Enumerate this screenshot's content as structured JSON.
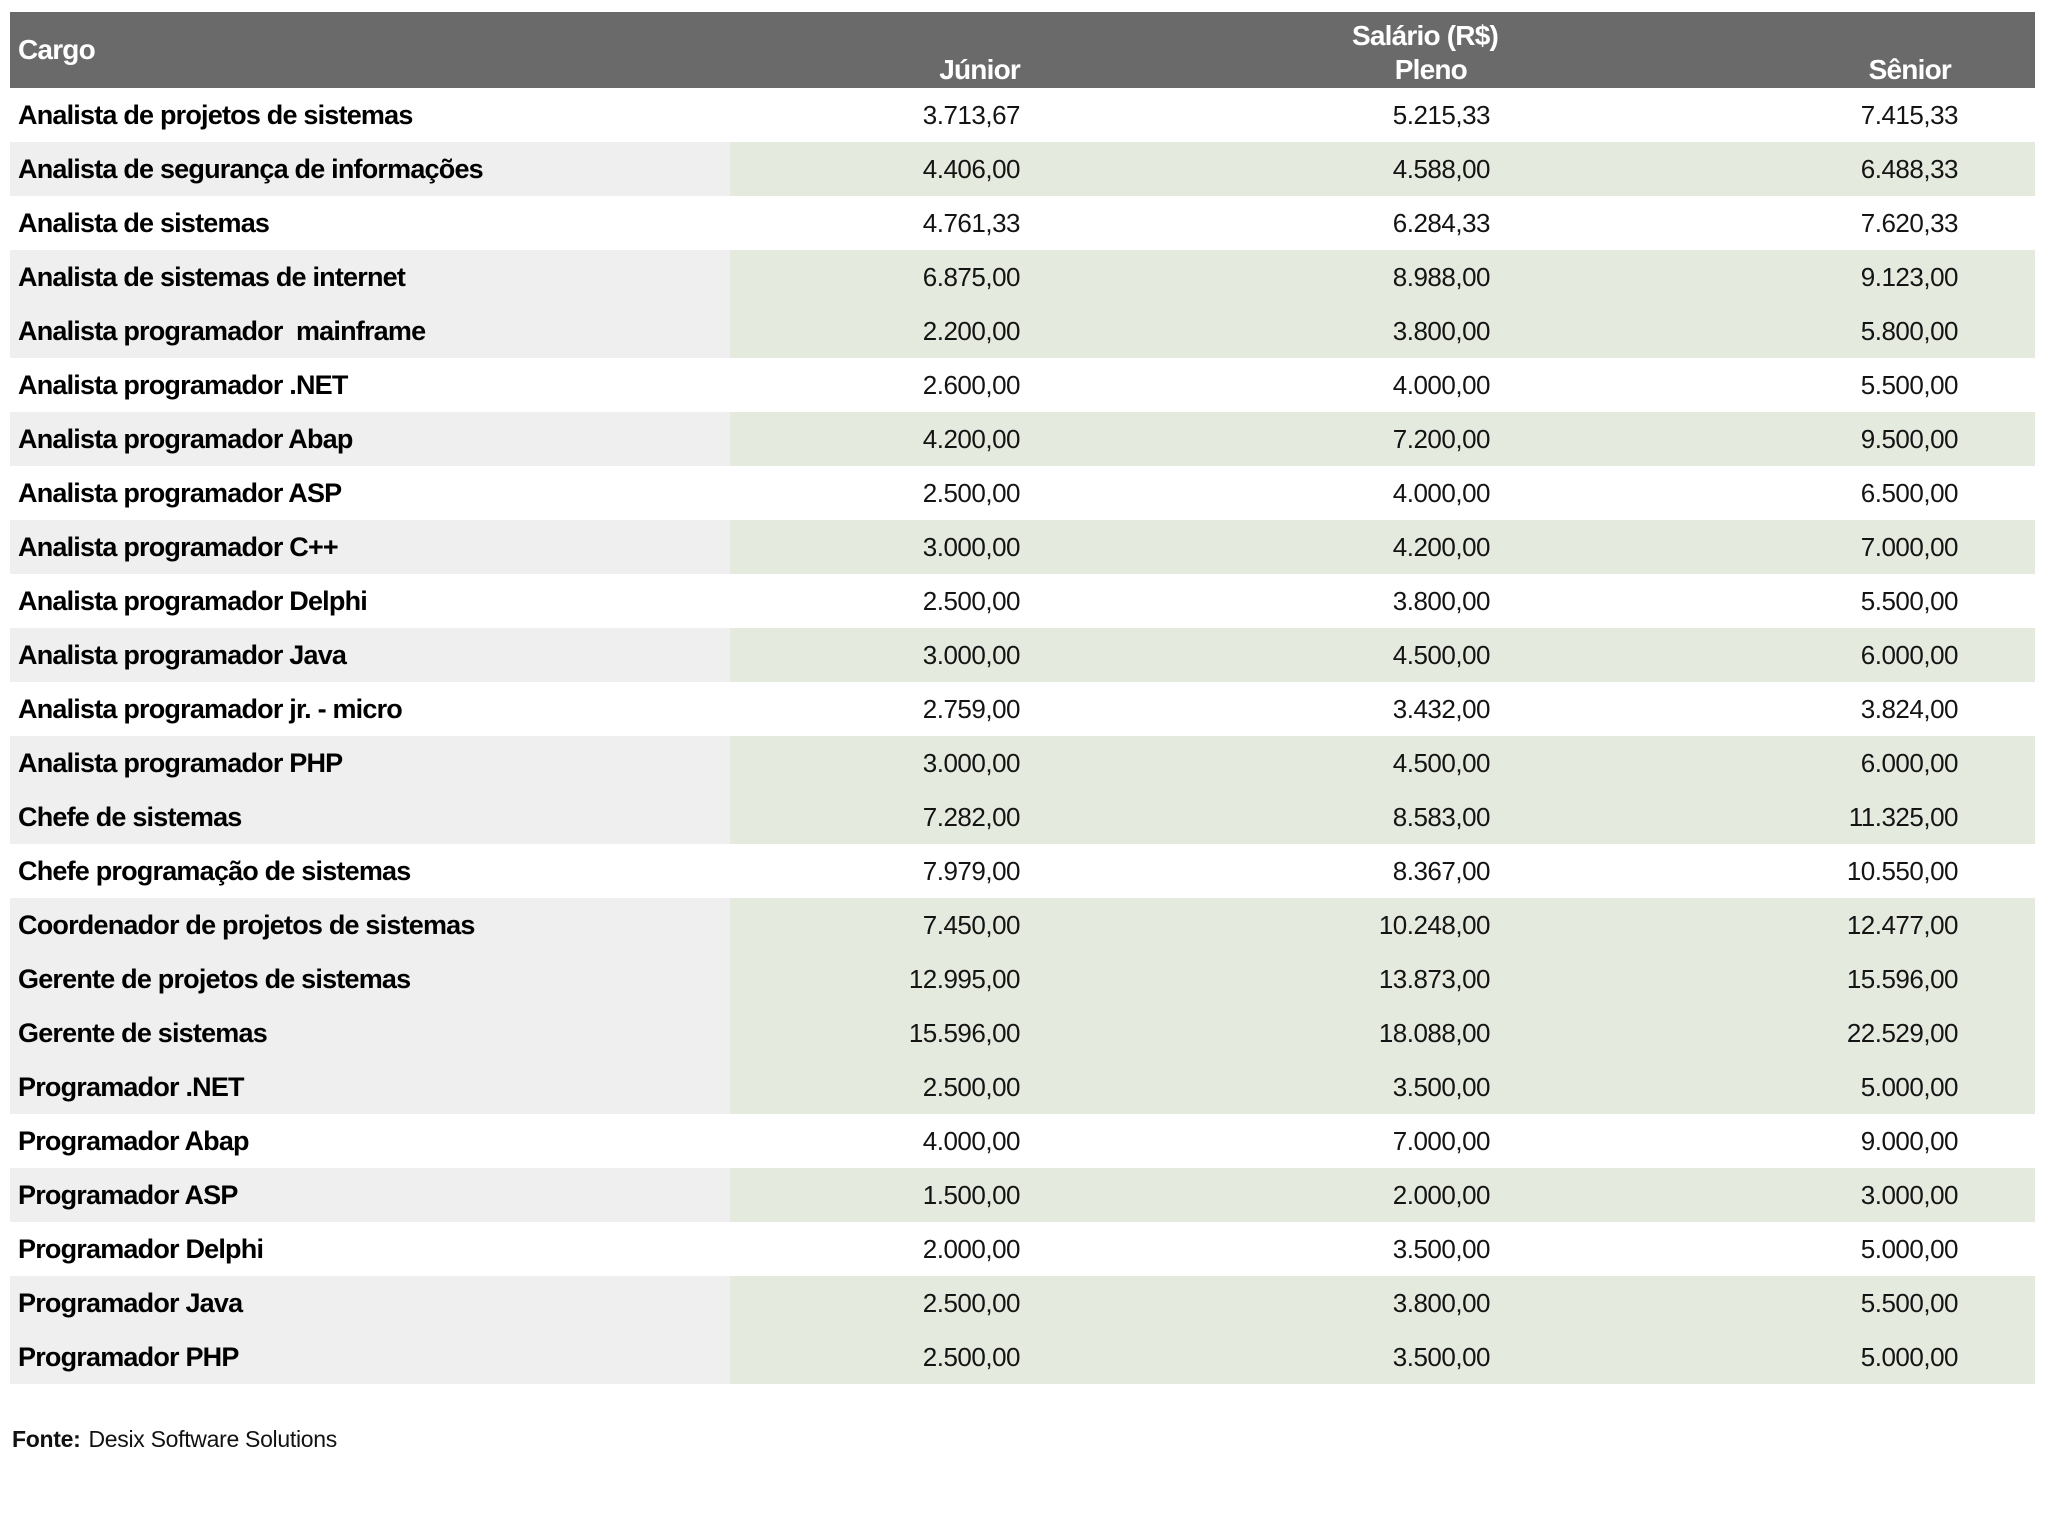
{
  "chart_data": {
    "type": "table",
    "title": "Salário (R$)",
    "header": {
      "cargo_label": "Cargo",
      "group_label": "Salário (R$)",
      "level_labels": [
        "Júnior",
        "Pleno",
        "Sênior"
      ]
    },
    "rows": [
      {
        "cargo": "Analista de projetos de sistemas",
        "junior": "3.713,67",
        "pleno": "5.215,33",
        "senior": "7.415,33",
        "shaded": false
      },
      {
        "cargo": "Analista de segurança de informações",
        "junior": "4.406,00",
        "pleno": "4.588,00",
        "senior": "6.488,33",
        "shaded": true
      },
      {
        "cargo": "Analista de sistemas",
        "junior": "4.761,33",
        "pleno": "6.284,33",
        "senior": "7.620,33",
        "shaded": false
      },
      {
        "cargo": "Analista de sistemas de internet",
        "junior": "6.875,00",
        "pleno": "8.988,00",
        "senior": "9.123,00",
        "shaded": true
      },
      {
        "cargo": "Analista programador  mainframe",
        "junior": "2.200,00",
        "pleno": "3.800,00",
        "senior": "5.800,00",
        "shaded": true
      },
      {
        "cargo": "Analista programador .NET",
        "junior": "2.600,00",
        "pleno": "4.000,00",
        "senior": "5.500,00",
        "shaded": false
      },
      {
        "cargo": "Analista programador Abap",
        "junior": "4.200,00",
        "pleno": "7.200,00",
        "senior": "9.500,00",
        "shaded": true
      },
      {
        "cargo": "Analista programador ASP",
        "junior": "2.500,00",
        "pleno": "4.000,00",
        "senior": "6.500,00",
        "shaded": false
      },
      {
        "cargo": "Analista programador C++",
        "junior": "3.000,00",
        "pleno": "4.200,00",
        "senior": "7.000,00",
        "shaded": true
      },
      {
        "cargo": "Analista programador Delphi",
        "junior": "2.500,00",
        "pleno": "3.800,00",
        "senior": "5.500,00",
        "shaded": false
      },
      {
        "cargo": "Analista programador Java",
        "junior": "3.000,00",
        "pleno": "4.500,00",
        "senior": "6.000,00",
        "shaded": true
      },
      {
        "cargo": "Analista programador jr. - micro",
        "junior": "2.759,00",
        "pleno": "3.432,00",
        "senior": "3.824,00",
        "shaded": false
      },
      {
        "cargo": "Analista programador PHP",
        "junior": "3.000,00",
        "pleno": "4.500,00",
        "senior": "6.000,00",
        "shaded": true
      },
      {
        "cargo": "Chefe de sistemas",
        "junior": "7.282,00",
        "pleno": "8.583,00",
        "senior": "11.325,00",
        "shaded": true
      },
      {
        "cargo": "Chefe programação de sistemas",
        "junior": "7.979,00",
        "pleno": "8.367,00",
        "senior": "10.550,00",
        "shaded": false
      },
      {
        "cargo": "Coordenador de projetos de sistemas",
        "junior": "7.450,00",
        "pleno": "10.248,00",
        "senior": "12.477,00",
        "shaded": true
      },
      {
        "cargo": "Gerente de projetos de sistemas",
        "junior": "12.995,00",
        "pleno": "13.873,00",
        "senior": "15.596,00",
        "shaded": true
      },
      {
        "cargo": "Gerente de sistemas",
        "junior": "15.596,00",
        "pleno": "18.088,00",
        "senior": "22.529,00",
        "shaded": true
      },
      {
        "cargo": "Programador .NET",
        "junior": "2.500,00",
        "pleno": "3.500,00",
        "senior": "5.000,00",
        "shaded": true
      },
      {
        "cargo": "Programador Abap",
        "junior": "4.000,00",
        "pleno": "7.000,00",
        "senior": "9.000,00",
        "shaded": false
      },
      {
        "cargo": "Programador ASP",
        "junior": "1.500,00",
        "pleno": "2.000,00",
        "senior": "3.000,00",
        "shaded": true
      },
      {
        "cargo": "Programador Delphi",
        "junior": "2.000,00",
        "pleno": "3.500,00",
        "senior": "5.000,00",
        "shaded": false
      },
      {
        "cargo": "Programador Java",
        "junior": "2.500,00",
        "pleno": "3.800,00",
        "senior": "5.500,00",
        "shaded": true
      },
      {
        "cargo": "Programador PHP",
        "junior": "2.500,00",
        "pleno": "3.500,00",
        "senior": "5.000,00",
        "shaded": true
      }
    ],
    "footer": {
      "source_label": "Fonte:",
      "source_text": "Desix Software Solutions"
    },
    "colors": {
      "header_bg": "#6a6a6a",
      "header_text": "#ffffff",
      "shaded_cargo_bg": "#f0eff0",
      "shaded_value_bg": "#e5eade",
      "plain_row_bg": "#ffffff"
    }
  }
}
